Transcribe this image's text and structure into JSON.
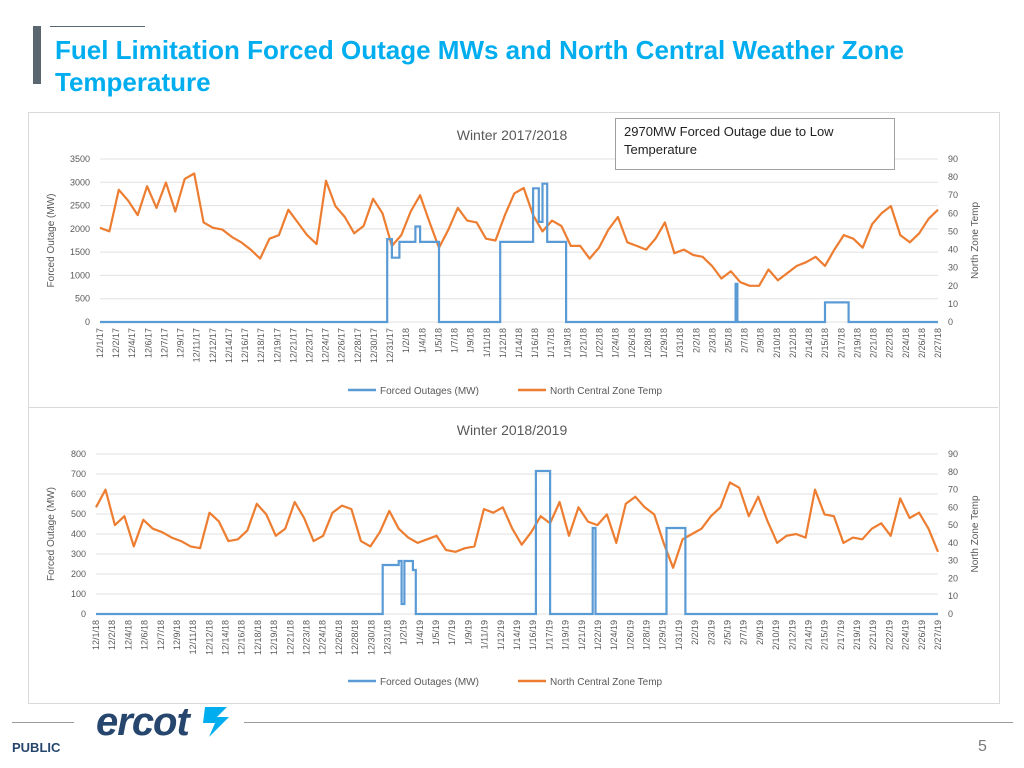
{
  "slide": {
    "title": "Fuel Limitation Forced Outage MWs and North Central Weather Zone Temperature",
    "footer_label": "PUBLIC",
    "page_number": "5",
    "logo_text": "ercot"
  },
  "colors": {
    "outage": "#5b9bd5",
    "temp": "#ed7d31",
    "title": "#00aeef",
    "logo": "#26466d"
  },
  "chart_data": [
    {
      "type": "line",
      "title": "Winter 2017/2018",
      "annotation": "2970MW Forced Outage due to Low Temperature",
      "ylabel": "Forced Outage (MW)",
      "y2label": "North Zone Temp",
      "ylim": [
        0,
        3500
      ],
      "y2lim": [
        0,
        90
      ],
      "yticks": [
        "0",
        "500",
        "1000",
        "1500",
        "2000",
        "2500",
        "3000",
        "3500"
      ],
      "y2ticks": [
        "0",
        "10",
        "20",
        "30",
        "40",
        "50",
        "60",
        "70",
        "80",
        "90"
      ],
      "legend": [
        "Forced Outages (MW)",
        "North Central Zone Temp"
      ],
      "day_count": 90,
      "categories": [
        "12/1/17",
        "12/2/17",
        "12/4/17",
        "12/6/17",
        "12/7/17",
        "12/9/17",
        "12/11/17",
        "12/12/17",
        "12/14/17",
        "12/16/17",
        "12/18/17",
        "12/19/17",
        "12/21/17",
        "12/23/17",
        "12/24/17",
        "12/26/17",
        "12/28/17",
        "12/30/17",
        "12/31/17",
        "1/2/18",
        "1/4/18",
        "1/5/18",
        "1/7/18",
        "1/9/18",
        "1/11/18",
        "1/12/18",
        "1/14/18",
        "1/16/18",
        "1/17/18",
        "1/19/18",
        "1/21/18",
        "1/22/18",
        "1/24/18",
        "1/26/18",
        "1/28/18",
        "1/29/18",
        "1/31/18",
        "2/2/18",
        "2/3/18",
        "2/5/18",
        "2/7/18",
        "2/9/18",
        "2/10/18",
        "2/12/18",
        "2/14/18",
        "2/15/18",
        "2/17/18",
        "2/19/18",
        "2/21/18",
        "2/22/18",
        "2/24/18",
        "2/26/18",
        "2/27/18"
      ],
      "outage_series": {
        "name": "Forced Outages (MW)",
        "points": [
          [
            0,
            0
          ],
          [
            30.5,
            0
          ],
          [
            30.5,
            1780
          ],
          [
            31,
            1780
          ],
          [
            31,
            1380
          ],
          [
            31.8,
            1380
          ],
          [
            31.8,
            1720
          ],
          [
            33.5,
            1720
          ],
          [
            33.5,
            2050
          ],
          [
            34,
            2050
          ],
          [
            34,
            1720
          ],
          [
            36,
            1720
          ],
          [
            36,
            0
          ],
          [
            42.5,
            0
          ],
          [
            42.5,
            1720
          ],
          [
            46,
            1720
          ],
          [
            46,
            2870
          ],
          [
            46.6,
            2870
          ],
          [
            46.6,
            2150
          ],
          [
            47,
            2150
          ],
          [
            47,
            2970
          ],
          [
            47.5,
            2970
          ],
          [
            47.5,
            1720
          ],
          [
            49.5,
            1720
          ],
          [
            49.5,
            0
          ],
          [
            67.5,
            0
          ],
          [
            67.5,
            820
          ],
          [
            67.7,
            820
          ],
          [
            67.7,
            0
          ],
          [
            77,
            0
          ],
          [
            77,
            420
          ],
          [
            79.5,
            420
          ],
          [
            79.5,
            0
          ],
          [
            89,
            0
          ]
        ]
      },
      "temp_series": {
        "name": "North Central Zone Temp",
        "values": [
          52,
          50,
          73,
          67,
          59,
          75,
          63,
          77,
          61,
          79,
          82,
          55,
          52,
          51,
          47,
          44,
          40,
          35,
          46,
          48,
          62,
          55,
          48,
          43,
          78,
          64,
          58,
          49,
          53,
          68,
          60,
          42,
          48,
          61,
          70,
          55,
          41,
          51,
          63,
          56,
          55,
          46,
          45,
          59,
          71,
          74,
          59,
          50,
          56,
          53,
          42,
          42,
          35,
          41,
          51,
          58,
          44,
          42,
          40,
          46,
          55,
          38,
          40,
          37,
          36,
          31,
          24,
          28,
          22,
          20,
          20,
          29,
          23,
          27,
          31,
          33,
          36,
          31,
          40,
          48,
          46,
          41,
          54,
          60,
          64,
          48,
          44,
          49,
          57,
          62
        ]
      }
    },
    {
      "type": "line",
      "title": "Winter 2018/2019",
      "ylabel": "Forced Outage (MW)",
      "y2label": "North Zone Temp",
      "ylim": [
        0,
        800
      ],
      "y2lim": [
        0,
        90
      ],
      "yticks": [
        "0",
        "100",
        "200",
        "300",
        "400",
        "500",
        "600",
        "700",
        "800"
      ],
      "y2ticks": [
        "0",
        "10",
        "20",
        "30",
        "40",
        "50",
        "60",
        "70",
        "80",
        "90"
      ],
      "legend": [
        "Forced Outages (MW)",
        "North Central Zone Temp"
      ],
      "day_count": 90,
      "categories": [
        "12/1/18",
        "12/2/18",
        "12/4/18",
        "12/6/18",
        "12/7/18",
        "12/9/18",
        "12/11/18",
        "12/12/18",
        "12/14/18",
        "12/16/18",
        "12/18/18",
        "12/19/18",
        "12/21/18",
        "12/23/18",
        "12/24/18",
        "12/26/18",
        "12/28/18",
        "12/30/18",
        "12/31/18",
        "1/2/19",
        "1/4/19",
        "1/5/19",
        "1/7/19",
        "1/9/19",
        "1/11/19",
        "1/12/19",
        "1/14/19",
        "1/16/19",
        "1/17/19",
        "1/19/19",
        "1/21/19",
        "1/22/19",
        "1/24/19",
        "1/26/19",
        "1/28/19",
        "1/29/19",
        "1/31/19",
        "2/2/19",
        "2/3/19",
        "2/5/19",
        "2/7/19",
        "2/9/19",
        "2/10/19",
        "2/12/19",
        "2/14/19",
        "2/15/19",
        "2/17/19",
        "2/19/19",
        "2/21/19",
        "2/22/19",
        "2/24/19",
        "2/26/19",
        "2/27/19"
      ],
      "outage_series": {
        "name": "Forced Outages (MW)",
        "points": [
          [
            0,
            0
          ],
          [
            30.3,
            0
          ],
          [
            30.3,
            245
          ],
          [
            32,
            245
          ],
          [
            32,
            265
          ],
          [
            32.3,
            265
          ],
          [
            32.3,
            50
          ],
          [
            32.6,
            50
          ],
          [
            32.6,
            265
          ],
          [
            33.5,
            265
          ],
          [
            33.5,
            220
          ],
          [
            33.8,
            220
          ],
          [
            33.8,
            0
          ],
          [
            46.5,
            0
          ],
          [
            46.5,
            715
          ],
          [
            48,
            715
          ],
          [
            48,
            0
          ],
          [
            52.5,
            0
          ],
          [
            52.5,
            430
          ],
          [
            52.8,
            430
          ],
          [
            52.8,
            0
          ],
          [
            60.3,
            0
          ],
          [
            60.3,
            430
          ],
          [
            62.3,
            430
          ],
          [
            62.3,
            0
          ],
          [
            89,
            0
          ]
        ]
      },
      "temp_series": {
        "name": "North Central Zone Temp",
        "values": [
          60,
          70,
          50,
          55,
          38,
          53,
          48,
          46,
          43,
          41,
          38,
          37,
          57,
          52,
          41,
          42,
          47,
          62,
          56,
          44,
          48,
          63,
          54,
          41,
          44,
          57,
          61,
          59,
          41,
          38,
          46,
          58,
          48,
          43,
          40,
          42,
          44,
          36,
          35,
          37,
          38,
          59,
          57,
          60,
          48,
          39,
          46,
          55,
          51,
          63,
          44,
          60,
          52,
          50,
          56,
          40,
          62,
          66,
          60,
          56,
          40,
          26,
          42,
          45,
          48,
          55,
          60,
          74,
          71,
          55,
          66,
          52,
          40,
          44,
          45,
          43,
          70,
          56,
          55,
          40,
          43,
          42,
          48,
          51,
          44,
          65,
          54,
          57,
          48,
          35
        ]
      }
    }
  ]
}
